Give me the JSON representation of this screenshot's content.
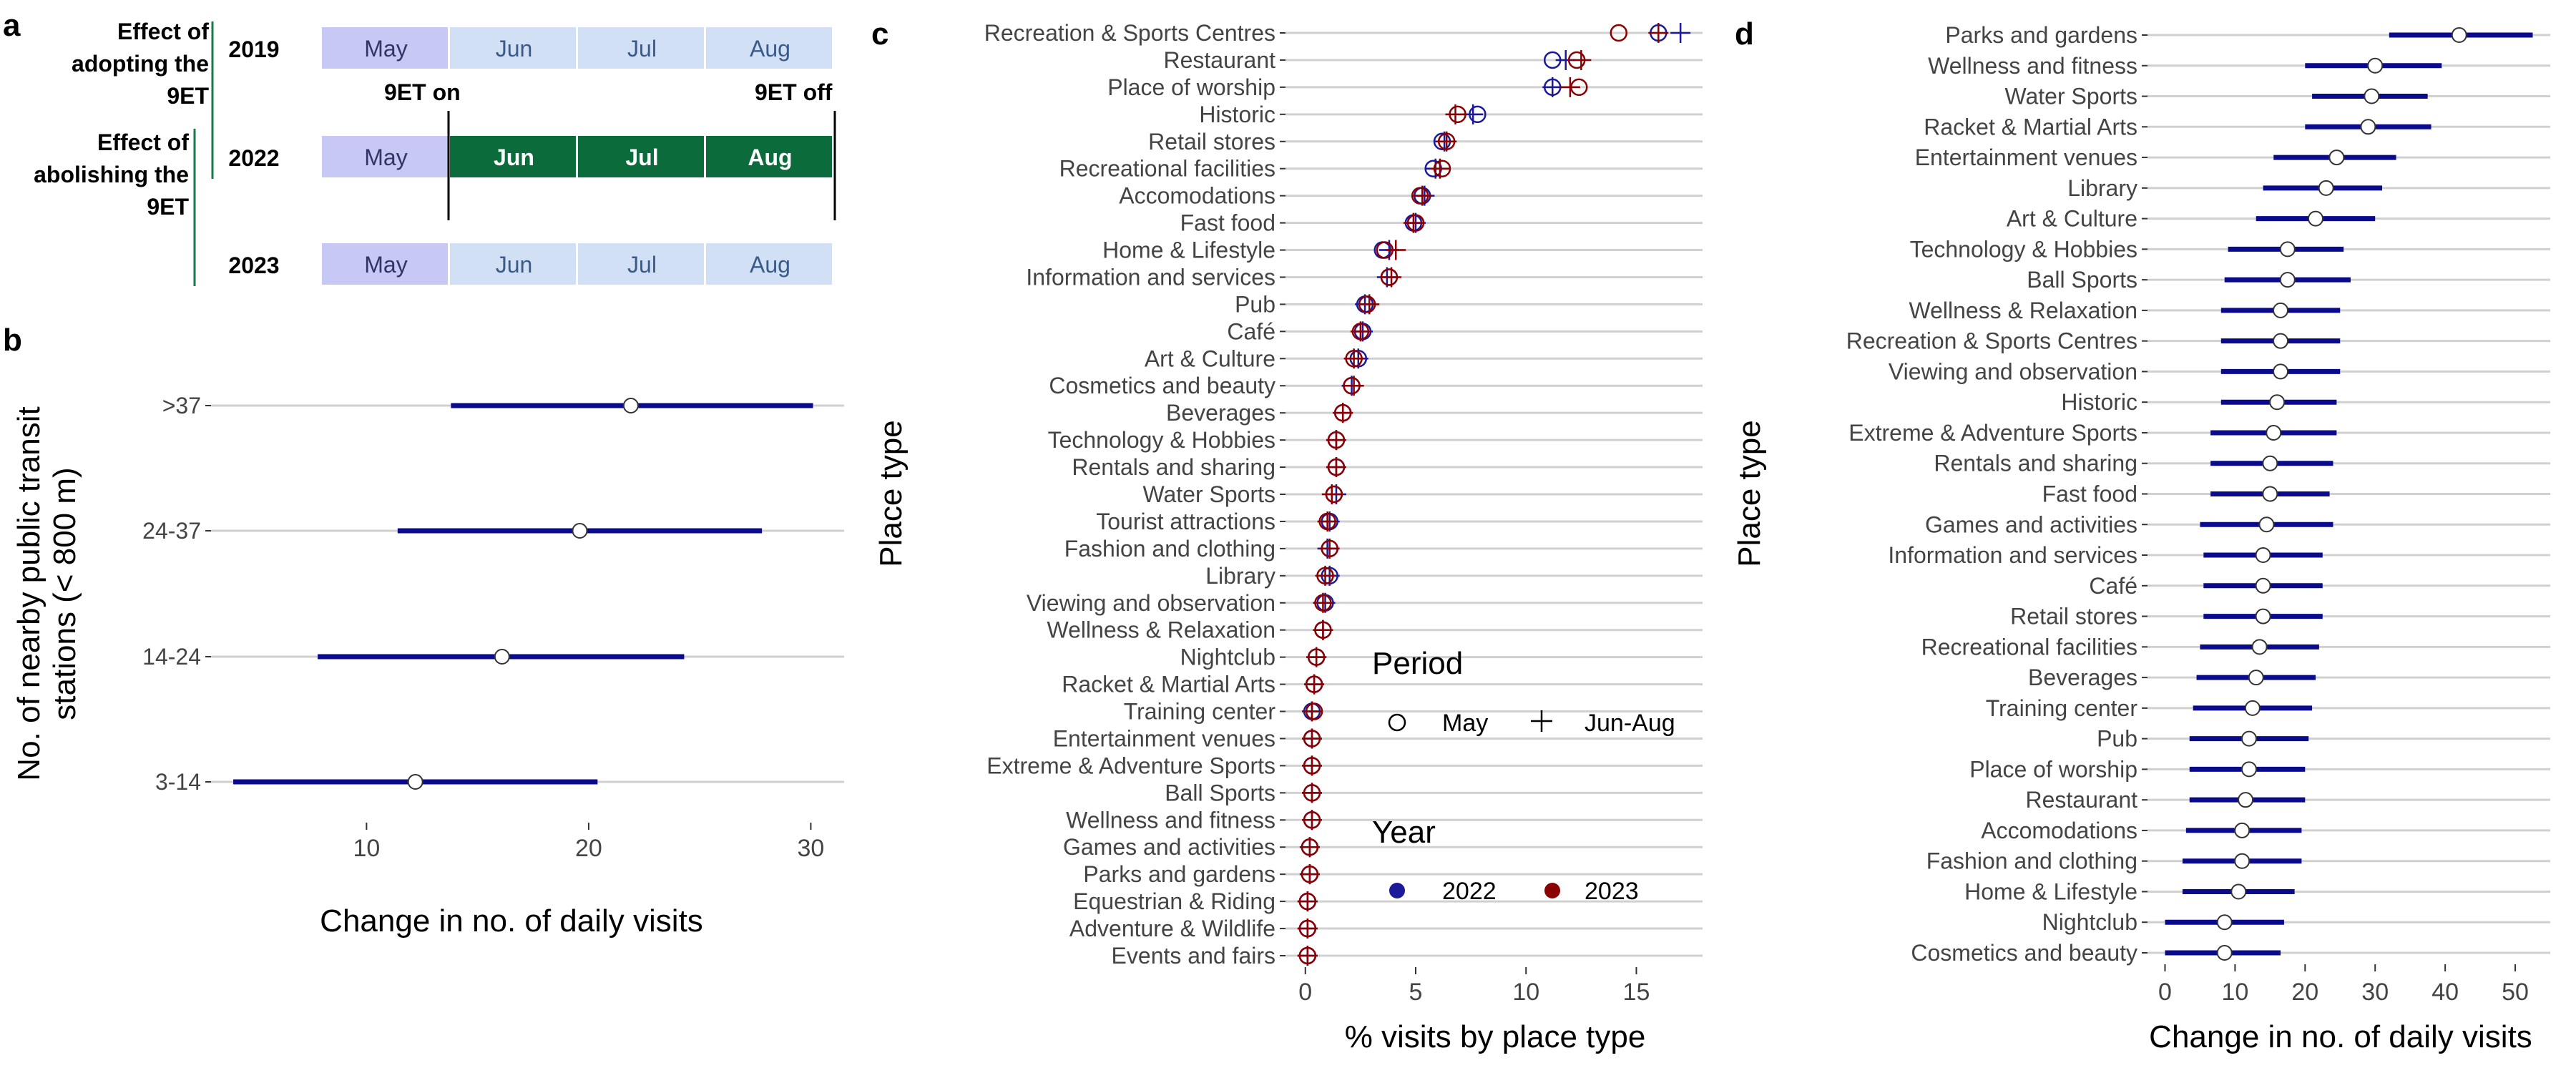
{
  "panels": {
    "a": {
      "label": "a",
      "rows": [
        {
          "year": "2019",
          "effect": [
            "Effect of",
            "adopting the",
            "9ET"
          ],
          "months": [
            "May",
            "Jun",
            "Jul",
            "Aug"
          ],
          "active": [
            true,
            false,
            false,
            false
          ]
        },
        {
          "year": "2022",
          "effect": [
            "Effect of",
            "abolishing the",
            "9ET"
          ],
          "months": [
            "May",
            "Jun",
            "Jul",
            "Aug"
          ],
          "active": [
            true,
            true,
            true,
            true
          ]
        },
        {
          "year": "2023",
          "effect": [],
          "months": [
            "May",
            "Jun",
            "Jul",
            "Aug"
          ],
          "active": [
            true,
            false,
            false,
            false
          ]
        }
      ],
      "marker_on": "9ET on",
      "marker_off": "9ET off",
      "colors": {
        "may": "#c8c8f5",
        "inactive": "#d2e0f5",
        "active": "#0b6b3a",
        "inactive_text": "#3a5a8a",
        "may_text": "#333366"
      }
    },
    "b": {
      "label": "b"
    },
    "c": {
      "label": "c"
    },
    "d": {
      "label": "d"
    }
  },
  "chart_data": [
    {
      "panel": "b",
      "type": "scatter",
      "title": "",
      "xlabel": "Change in no. of daily visits",
      "ylabel_lines": [
        "No. of nearby public transit",
        "stations (< 800 m)"
      ],
      "categories": [
        "3-14",
        "14-24",
        "24-37",
        ">37"
      ],
      "estimates": [
        12.2,
        16.1,
        19.6,
        21.9
      ],
      "ci_low": [
        4.0,
        7.8,
        11.4,
        13.8
      ],
      "ci_high": [
        20.4,
        24.3,
        27.8,
        30.1
      ],
      "xlim": [
        3.0,
        31.5
      ],
      "xticks": [
        10,
        20,
        30
      ],
      "color": "#0a0a8c"
    },
    {
      "panel": "c",
      "type": "scatter",
      "title": "",
      "xlabel": "% visits by place type",
      "ylabel": "Place type",
      "categories": [
        "Recreation & Sports Centres",
        "Restaurant",
        "Place of worship",
        "Historic",
        "Retail stores",
        "Recreational facilities",
        "Accomodations",
        "Fast food",
        "Home & Lifestyle",
        "Information and services",
        "Pub",
        "Café",
        "Art & Culture",
        "Cosmetics and beauty",
        "Beverages",
        "Technology & Hobbies",
        "Rentals and sharing",
        "Water Sports",
        "Tourist attractions",
        "Fashion and clothing",
        "Library",
        "Viewing and observation",
        "Wellness & Relaxation",
        "Nightclub",
        "Racket & Martial Arts",
        "Training center",
        "Entertainment venues",
        "Extreme & Adventure Sports",
        "Ball Sports",
        "Wellness and fitness",
        "Games and activities",
        "Parks and gardens",
        "Equestrian & Riding",
        "Adventure & Wildlife",
        "Events and fairs"
      ],
      "series": [
        {
          "name": "2022 May",
          "year": "2022",
          "period": "May",
          "values": [
            16.0,
            11.2,
            11.2,
            7.8,
            6.2,
            5.8,
            5.3,
            4.9,
            3.5,
            3.8,
            2.7,
            2.6,
            2.4,
            2.1,
            1.7,
            1.4,
            1.4,
            1.3,
            1.1,
            1.1,
            1.1,
            0.9,
            0.8,
            0.5,
            0.4,
            0.3,
            0.3,
            0.3,
            0.3,
            0.3,
            0.2,
            0.2,
            0.1,
            0.1,
            0.1
          ]
        },
        {
          "name": "2022 Jun-Aug",
          "year": "2022",
          "period": "Jun-Aug",
          "values": [
            17.0,
            11.8,
            11.2,
            7.6,
            6.3,
            5.9,
            5.4,
            5.0,
            3.8,
            3.7,
            2.7,
            2.6,
            2.4,
            2.1,
            1.7,
            1.4,
            1.4,
            1.4,
            1.1,
            1.0,
            1.1,
            0.9,
            0.8,
            0.5,
            0.4,
            0.3,
            0.3,
            0.3,
            0.3,
            0.3,
            0.2,
            0.2,
            0.1,
            0.1,
            0.1
          ]
        },
        {
          "name": "2023 May",
          "year": "2023",
          "period": "May",
          "values": [
            14.2,
            12.3,
            12.4,
            6.9,
            6.4,
            6.2,
            5.2,
            5.0,
            3.6,
            3.8,
            2.8,
            2.5,
            2.2,
            2.1,
            1.7,
            1.4,
            1.4,
            1.3,
            1.0,
            1.1,
            0.9,
            0.8,
            0.8,
            0.5,
            0.4,
            0.4,
            0.3,
            0.3,
            0.3,
            0.3,
            0.2,
            0.2,
            0.1,
            0.1,
            0.1
          ]
        },
        {
          "name": "2023 Jun-Aug",
          "year": "2023",
          "period": "Jun-Aug",
          "values": [
            16.0,
            12.5,
            12.0,
            6.8,
            6.4,
            6.1,
            5.3,
            4.9,
            4.1,
            3.9,
            2.9,
            2.5,
            2.2,
            2.2,
            1.7,
            1.4,
            1.4,
            1.2,
            1.0,
            1.1,
            0.9,
            0.8,
            0.8,
            0.5,
            0.4,
            0.3,
            0.3,
            0.3,
            0.3,
            0.3,
            0.2,
            0.2,
            0.1,
            0.1,
            0.1
          ]
        }
      ],
      "xlim": [
        -0.9,
        18.0
      ],
      "xticks": [
        0,
        5,
        10,
        15
      ],
      "legend": {
        "period_title": "Period",
        "period_items": [
          "May",
          "Jun-Aug"
        ],
        "year_title": "Year",
        "year_items": [
          "2022",
          "2023"
        ],
        "placement": "lower-right"
      },
      "colors": {
        "2022": "#1a1a9a",
        "2023": "#8b0000"
      }
    },
    {
      "panel": "d",
      "type": "scatter",
      "title": "",
      "xlabel": "Change in no. of daily visits",
      "ylabel": "Place type",
      "categories": [
        "Parks and gardens",
        "Wellness and fitness",
        "Water Sports",
        "Racket & Martial Arts",
        "Entertainment venues",
        "Library",
        "Art & Culture",
        "Technology & Hobbies",
        "Ball Sports",
        "Wellness & Relaxation",
        "Recreation & Sports Centres",
        "Viewing and observation",
        "Historic",
        "Extreme & Adventure Sports",
        "Rentals and sharing",
        "Fast food",
        "Games and activities",
        "Information and services",
        "Café",
        "Retail stores",
        "Recreational facilities",
        "Beverages",
        "Training center",
        "Pub",
        "Place of worship",
        "Restaurant",
        "Accomodations",
        "Fashion and clothing",
        "Home & Lifestyle",
        "Nightclub",
        "Cosmetics and beauty"
      ],
      "estimates": [
        42.0,
        30.0,
        29.5,
        29.0,
        24.5,
        23.0,
        21.5,
        17.5,
        17.5,
        16.5,
        16.5,
        16.5,
        16.0,
        15.5,
        15.0,
        15.0,
        14.5,
        14.0,
        14.0,
        14.0,
        13.5,
        13.0,
        12.5,
        12.0,
        12.0,
        11.5,
        11.0,
        11.0,
        10.5,
        8.5,
        8.5
      ],
      "ci_low": [
        32.0,
        20.0,
        21.0,
        20.0,
        15.5,
        14.0,
        13.0,
        9.0,
        8.5,
        8.0,
        8.0,
        8.0,
        8.0,
        6.5,
        6.5,
        6.5,
        5.0,
        5.5,
        5.5,
        5.5,
        5.0,
        4.5,
        4.0,
        3.5,
        3.5,
        3.5,
        3.0,
        2.5,
        2.5,
        0.0,
        0.0
      ],
      "ci_high": [
        52.5,
        39.5,
        37.5,
        38.0,
        33.0,
        31.0,
        30.0,
        25.5,
        26.5,
        25.0,
        25.0,
        25.0,
        24.5,
        24.5,
        24.0,
        23.5,
        24.0,
        22.5,
        22.5,
        22.5,
        22.0,
        21.5,
        21.0,
        20.5,
        20.0,
        20.0,
        19.5,
        19.5,
        18.5,
        17.0,
        16.5
      ],
      "xlim": [
        -2.5,
        55.0
      ],
      "xticks": [
        0,
        10,
        20,
        30,
        40,
        50
      ],
      "color": "#0a0a8c"
    }
  ]
}
